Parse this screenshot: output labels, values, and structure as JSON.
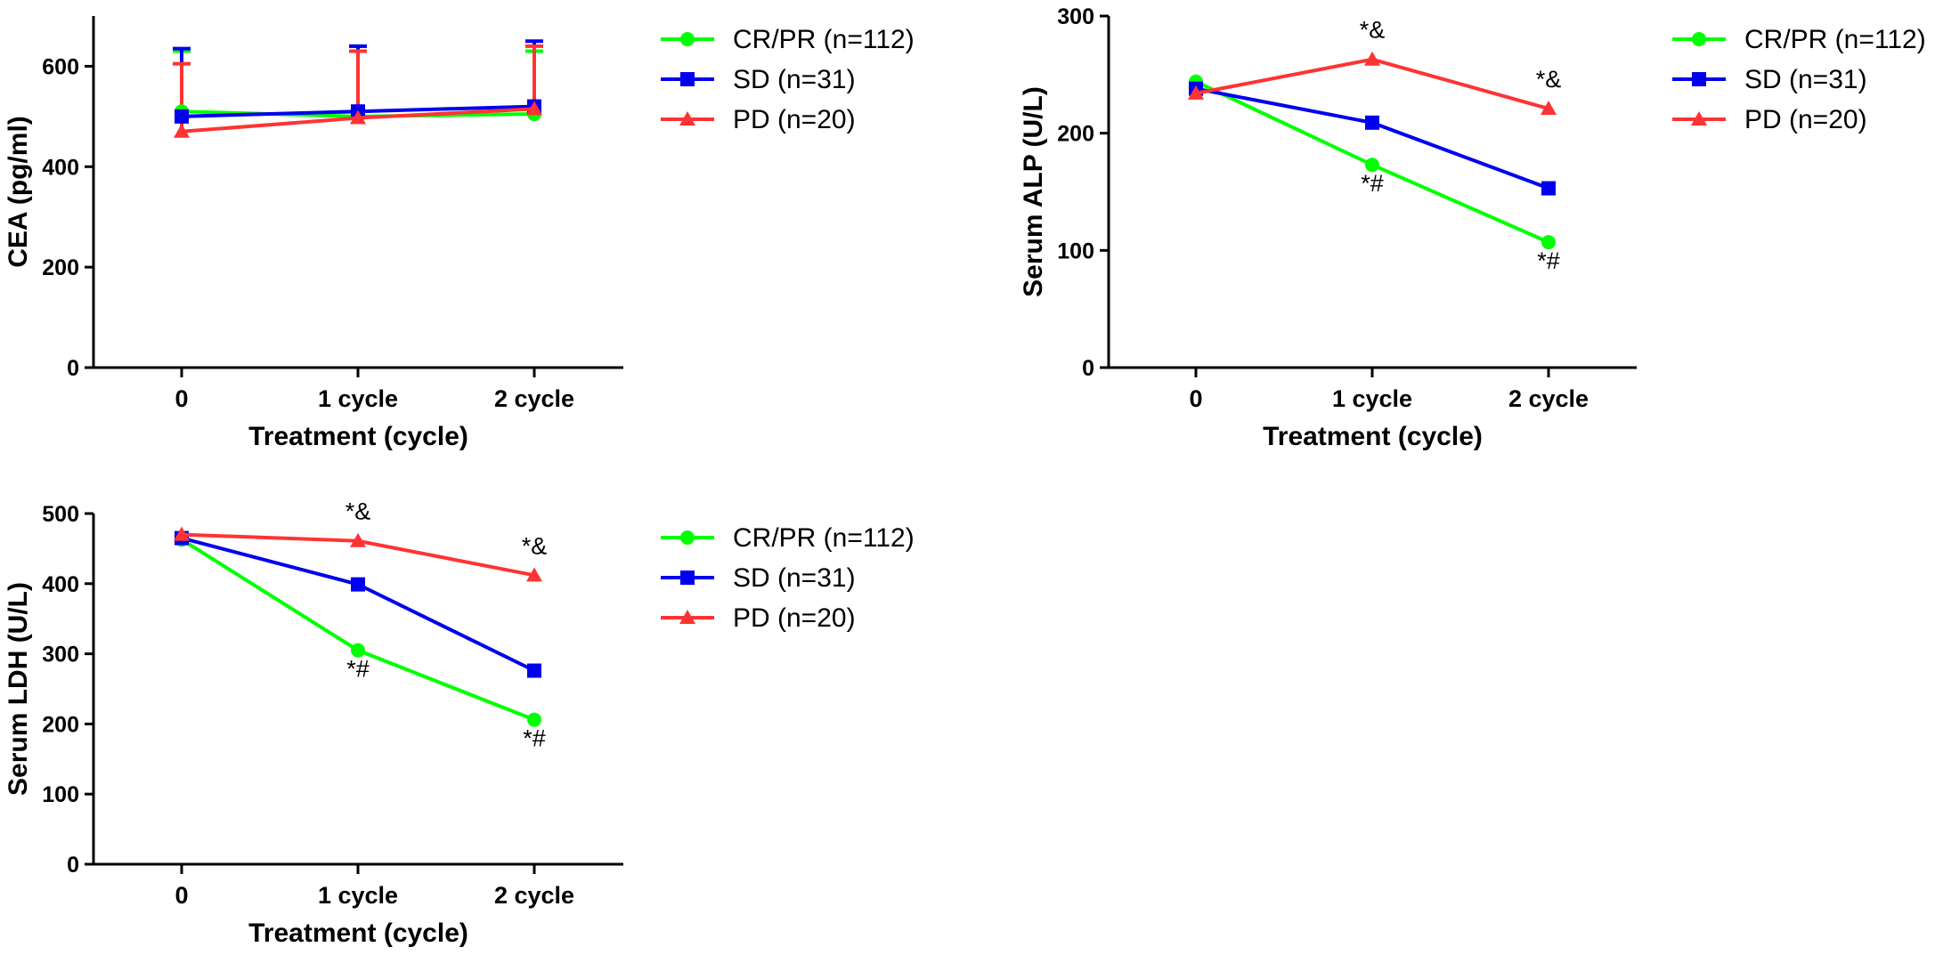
{
  "chart_data": [
    {
      "type": "line",
      "id": "cea",
      "x": [
        "0",
        "1 cycle",
        "2 cycle"
      ],
      "xlabel": "Treatment (cycle)",
      "ylabel": "CEA (pg/ml)",
      "ylim": [
        0,
        700
      ],
      "yticks": [
        0,
        200,
        400,
        600
      ],
      "series": [
        {
          "name": "CR/PR (n=112)",
          "color": "#00ff00",
          "marker": "circle",
          "values": [
            510,
            500,
            505
          ],
          "err_upper": [
            630,
            640,
            630
          ],
          "annotations": [
            "",
            "",
            ""
          ]
        },
        {
          "name": "SD (n=31)",
          "color": "#0000ee",
          "marker": "square",
          "values": [
            500,
            510,
            520
          ],
          "err_upper": [
            635,
            640,
            650
          ],
          "annotations": [
            "",
            "",
            ""
          ]
        },
        {
          "name": "PD (n=20)",
          "color": "#ff3333",
          "marker": "triangle",
          "values": [
            470,
            497,
            515
          ],
          "err_upper": [
            605,
            630,
            640
          ],
          "annotations": [
            "",
            "",
            ""
          ]
        }
      ]
    },
    {
      "type": "line",
      "id": "alp",
      "x": [
        "0",
        "1 cycle",
        "2 cycle"
      ],
      "xlabel": "Treatment (cycle)",
      "ylabel": "Serum ALP (U/L)",
      "ylim": [
        0,
        300
      ],
      "yticks": [
        0,
        100,
        200,
        300
      ],
      "series": [
        {
          "name": "CR/PR (n=112)",
          "color": "#00ff00",
          "marker": "circle",
          "values": [
            244,
            173,
            107
          ],
          "annotations": [
            "",
            "*#",
            "*#"
          ]
        },
        {
          "name": "SD (n=31)",
          "color": "#0000ee",
          "marker": "square",
          "values": [
            238,
            209,
            153
          ],
          "annotations": [
            "",
            "",
            ""
          ]
        },
        {
          "name": "PD (n=20)",
          "color": "#ff3333",
          "marker": "triangle",
          "values": [
            234,
            263,
            221
          ],
          "annotations": [
            "",
            "*&",
            "*&"
          ]
        }
      ]
    },
    {
      "type": "line",
      "id": "ldh",
      "x": [
        "0",
        "1 cycle",
        "2 cycle"
      ],
      "xlabel": "Treatment (cycle)",
      "ylabel": "Serum LDH (U/L)",
      "ylim": [
        0,
        500
      ],
      "yticks": [
        0,
        100,
        200,
        300,
        400,
        500
      ],
      "series": [
        {
          "name": "CR/PR (n=112)",
          "color": "#00ff00",
          "marker": "circle",
          "values": [
            463,
            305,
            206
          ],
          "annotations": [
            "",
            "*#",
            "*#"
          ]
        },
        {
          "name": "SD (n=31)",
          "color": "#0000ee",
          "marker": "square",
          "values": [
            465,
            399,
            276
          ],
          "annotations": [
            "",
            "",
            ""
          ]
        },
        {
          "name": "PD (n=20)",
          "color": "#ff3333",
          "marker": "triangle",
          "values": [
            470,
            461,
            412
          ],
          "annotations": [
            "",
            "*&",
            "*&"
          ]
        }
      ]
    }
  ]
}
